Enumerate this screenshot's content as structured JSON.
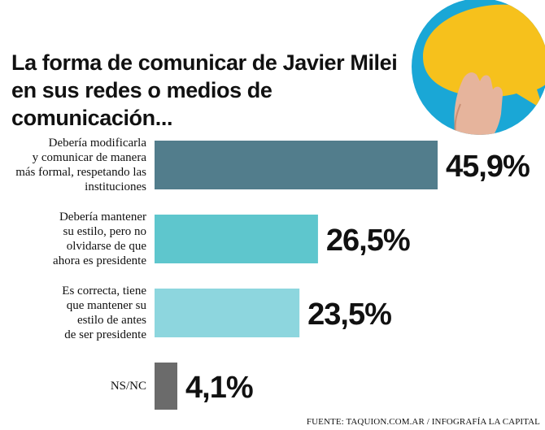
{
  "header": {
    "title_line1": "La forma de comunicar de Javier Milei",
    "title_line2": "en sus redes o medios de comunicación..."
  },
  "illustration": {
    "description_icon": "speech-bubble-hand-icon",
    "colors": {
      "circle": "#1aa7d6",
      "bubble": "#f6c11c"
    }
  },
  "chart_data": {
    "type": "bar",
    "orientation": "horizontal",
    "categories": [
      [
        "Debería modificarla",
        "y comunicar de manera",
        "más formal, respetando las",
        "instituciones"
      ],
      [
        "Debería mantener",
        "su estilo, pero no",
        "olvidarse de que",
        "ahora es presidente"
      ],
      [
        "Es correcta, tiene",
        "que mantener su",
        "estilo de antes",
        "de ser presidente"
      ],
      [
        "NS/NC"
      ]
    ],
    "values": [
      45.9,
      26.5,
      23.5,
      4.1
    ],
    "value_labels": [
      "45,9%",
      "26,5%",
      "23,5%",
      "4,1%"
    ],
    "colors": [
      "#527d8c",
      "#5ec6cd",
      "#8dd6de",
      "#6b6b6b"
    ],
    "xlim": [
      0,
      45.9
    ],
    "grid": false,
    "legend": "none"
  },
  "footer": {
    "source": "FUENTE: TAQUION.COM.AR / INFOGRAFÍA LA CAPITAL"
  }
}
